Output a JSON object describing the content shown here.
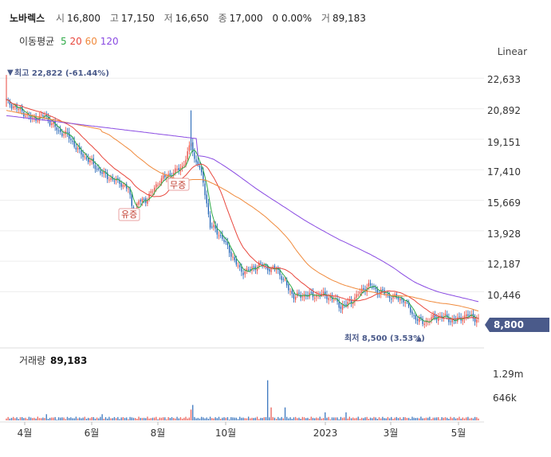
{
  "header": {
    "name": "노바렉스",
    "open_label": "시",
    "open": "16,800",
    "high_label": "고",
    "high": "17,150",
    "low_label": "저",
    "low": "16,650",
    "close_label": "종",
    "close": "17,000",
    "change": "0 0.00%",
    "volume_label": "거",
    "volume": "89,183"
  },
  "ma_legend": {
    "title": "이동평균",
    "items": [
      {
        "label": "5",
        "color": "#2eaa47"
      },
      {
        "label": "20",
        "color": "#e8473d"
      },
      {
        "label": "60",
        "color": "#f08a3c"
      },
      {
        "label": "120",
        "color": "#8a4be2"
      }
    ]
  },
  "scale_mode": "Linear",
  "price_box": "8,800",
  "colors": {
    "up": "#e8473d",
    "down": "#1a5fb4",
    "badge": "#4a5a8a",
    "axis": "#333333"
  },
  "chart_data": {
    "type": "candlestick",
    "y_ticks": [
      22633,
      20892,
      19151,
      17410,
      15669,
      13928,
      12187,
      10446
    ],
    "y_tick_labels": [
      "22,633",
      "20,892",
      "19,151",
      "17,410",
      "15,669",
      "13,928",
      "12,187",
      "10,446"
    ],
    "ylim": [
      8104,
      23100
    ],
    "x_tick_labels": [
      "4월",
      "6월",
      "8월",
      "10월",
      "2023",
      "3월",
      "5월"
    ],
    "max_marker": "최고 22,822 (-61.44%)",
    "min_marker": "최저 8,500 (3.53%)",
    "annotations": [
      "유증",
      "무증"
    ],
    "volume_title": "거래량",
    "volume_value": "89,183",
    "volume_ticks": [
      "1.29m",
      "646k"
    ],
    "price_anchors": [
      [
        0,
        21300
      ],
      [
        8,
        20800
      ],
      [
        15,
        20300
      ],
      [
        22,
        20500
      ],
      [
        30,
        19600
      ],
      [
        35,
        19400
      ],
      [
        42,
        18400
      ],
      [
        48,
        17900
      ],
      [
        55,
        17200
      ],
      [
        60,
        16900
      ],
      [
        65,
        16700
      ],
      [
        70,
        16300
      ],
      [
        73,
        14900
      ],
      [
        76,
        15600
      ],
      [
        80,
        15700
      ],
      [
        84,
        16200
      ],
      [
        88,
        16800
      ],
      [
        93,
        17100
      ],
      [
        97,
        17300
      ],
      [
        101,
        17600
      ],
      [
        104,
        18300
      ],
      [
        106,
        19000
      ],
      [
        108,
        18000
      ],
      [
        110,
        17800
      ],
      [
        113,
        16700
      ],
      [
        115,
        15500
      ],
      [
        117,
        14200
      ],
      [
        120,
        14000
      ],
      [
        124,
        13500
      ],
      [
        128,
        12800
      ],
      [
        131,
        12200
      ],
      [
        134,
        11700
      ],
      [
        136,
        11600
      ],
      [
        140,
        11700
      ],
      [
        143,
        11900
      ],
      [
        146,
        12000
      ],
      [
        149,
        11900
      ],
      [
        152,
        11700
      ],
      [
        155,
        11800
      ],
      [
        158,
        11300
      ],
      [
        162,
        10600
      ],
      [
        165,
        10200
      ],
      [
        169,
        10200
      ],
      [
        172,
        10300
      ],
      [
        176,
        10200
      ],
      [
        180,
        10300
      ],
      [
        184,
        10200
      ],
      [
        188,
        10000
      ],
      [
        192,
        9600
      ],
      [
        195,
        9700
      ],
      [
        198,
        9900
      ],
      [
        202,
        10300
      ],
      [
        206,
        10700
      ],
      [
        208,
        10800
      ],
      [
        210,
        10700
      ],
      [
        213,
        10500
      ],
      [
        216,
        10400
      ],
      [
        220,
        10200
      ],
      [
        224,
        10100
      ],
      [
        228,
        10000
      ],
      [
        230,
        9700
      ],
      [
        233,
        9200
      ],
      [
        236,
        8850
      ],
      [
        239,
        8700
      ],
      [
        242,
        8800
      ],
      [
        245,
        8950
      ],
      [
        248,
        9050
      ],
      [
        252,
        9000
      ],
      [
        256,
        8800
      ],
      [
        259,
        8850
      ],
      [
        262,
        9000
      ],
      [
        265,
        9100
      ],
      [
        268,
        9000
      ],
      [
        271,
        8800
      ]
    ]
  }
}
